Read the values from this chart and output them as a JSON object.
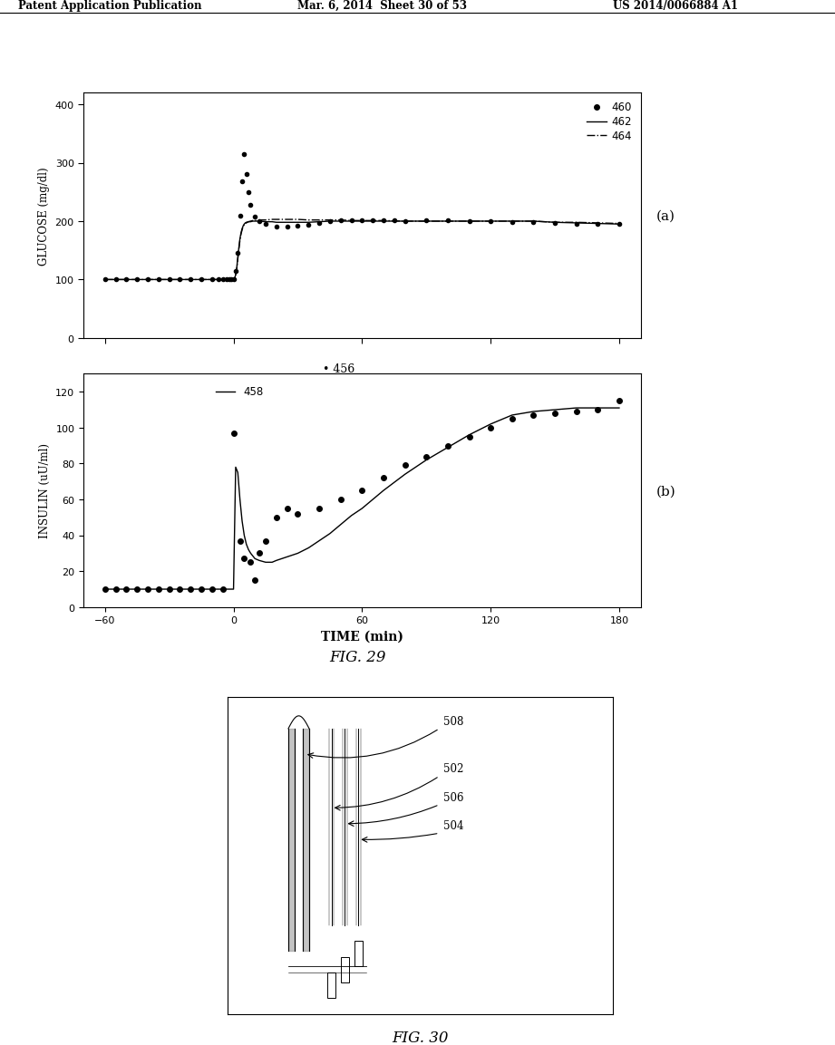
{
  "header_left": "Patent Application Publication",
  "header_mid": "Mar. 6, 2014  Sheet 30 of 53",
  "header_right": "US 2014/0066884 A1",
  "fig29_label": "FIG. 29",
  "fig30_label": "FIG. 30",
  "label_a": "(a)",
  "label_b": "(b)",
  "glucose_ylabel": "GLUCOSE (mg/dl)",
  "insulin_ylabel": "INSULIN (uU/ml)",
  "time_xlabel": "TIME (min)",
  "glucose_yticks": [
    0,
    100,
    200,
    300,
    400
  ],
  "glucose_ylim": [
    0,
    420
  ],
  "insulin_yticks": [
    0,
    20,
    40,
    60,
    80,
    100,
    120
  ],
  "insulin_ylim": [
    0,
    130
  ],
  "time_xticks": [
    -60,
    0,
    60,
    120,
    180
  ],
  "time_xlim": [
    -70,
    190
  ],
  "legend_460": "460",
  "legend_462": "462",
  "legend_464": "464",
  "legend_456": "456",
  "legend_458": "458",
  "glucose_dots_x": [
    -60,
    -55,
    -50,
    -45,
    -40,
    -35,
    -30,
    -25,
    -20,
    -15,
    -10,
    -7,
    -5,
    -3,
    -2,
    -1,
    0,
    1,
    2,
    3,
    4,
    5,
    6,
    7,
    8,
    10,
    12,
    15,
    20,
    25,
    30,
    35,
    40,
    45,
    50,
    55,
    60,
    65,
    70,
    75,
    80,
    90,
    100,
    110,
    120,
    130,
    140,
    150,
    160,
    170,
    180
  ],
  "glucose_dots_y": [
    100,
    100,
    100,
    100,
    100,
    100,
    100,
    100,
    101,
    100,
    100,
    100,
    100,
    100,
    100,
    100,
    100,
    115,
    145,
    210,
    268,
    315,
    280,
    250,
    228,
    208,
    200,
    195,
    190,
    191,
    192,
    194,
    197,
    200,
    201,
    201,
    202,
    202,
    201,
    201,
    200,
    201,
    202,
    200,
    200,
    199,
    198,
    197,
    196,
    196,
    195
  ],
  "glucose_line_x": [
    -60,
    -55,
    -50,
    -45,
    -40,
    -35,
    -30,
    -25,
    -20,
    -15,
    -10,
    -5,
    0,
    0.5,
    1,
    1.5,
    2,
    2.5,
    3,
    3.5,
    4,
    4.5,
    5,
    5.5,
    6,
    7,
    8,
    9,
    10,
    12,
    15,
    18,
    20,
    25,
    30,
    35,
    40,
    45,
    50,
    55,
    60,
    70,
    80,
    90,
    100,
    110,
    120,
    130,
    140,
    150,
    160,
    170,
    180
  ],
  "glucose_line_y": [
    100,
    100,
    100,
    100,
    100,
    100,
    100,
    100,
    100,
    100,
    100,
    100,
    100,
    102,
    108,
    120,
    138,
    155,
    170,
    180,
    187,
    192,
    195,
    197,
    198,
    199,
    199,
    200,
    200,
    200,
    199,
    199,
    198,
    198,
    198,
    198,
    199,
    200,
    200,
    200,
    200,
    200,
    200,
    200,
    200,
    200,
    200,
    200,
    200,
    198,
    197,
    196,
    195
  ],
  "glucose_dash_x": [
    -60,
    -55,
    -50,
    -45,
    -40,
    -35,
    -30,
    -25,
    -20,
    -15,
    -10,
    -5,
    0,
    0.5,
    1,
    1.5,
    2,
    2.5,
    3,
    3.5,
    4,
    4.5,
    5,
    5.5,
    6,
    7,
    8,
    9,
    10,
    12,
    15,
    18,
    20,
    25,
    30,
    35,
    40,
    45,
    50,
    55,
    60,
    70,
    80,
    90,
    100,
    110,
    120,
    130,
    140,
    150,
    160,
    170,
    180
  ],
  "glucose_dash_y": [
    100,
    100,
    100,
    100,
    100,
    100,
    100,
    100,
    100,
    100,
    100,
    100,
    100,
    102,
    108,
    118,
    135,
    152,
    167,
    178,
    185,
    191,
    194,
    196,
    197,
    199,
    200,
    201,
    201,
    202,
    202,
    203,
    203,
    203,
    203,
    202,
    202,
    202,
    202,
    201,
    201,
    201,
    200,
    200,
    200,
    200,
    200,
    200,
    200,
    198,
    198,
    197,
    196
  ],
  "insulin_dots_x": [
    -60,
    -55,
    -50,
    -45,
    -40,
    -35,
    -30,
    -25,
    -20,
    -15,
    -10,
    -5,
    0,
    3,
    5,
    8,
    10,
    12,
    15,
    20,
    25,
    30,
    40,
    50,
    60,
    70,
    80,
    90,
    100,
    110,
    120,
    130,
    140,
    150,
    160,
    170,
    180
  ],
  "insulin_dots_y": [
    10,
    10,
    10,
    10,
    10,
    10,
    10,
    10,
    10,
    10,
    10,
    10,
    97,
    37,
    27,
    25,
    15,
    30,
    37,
    50,
    55,
    52,
    55,
    60,
    65,
    72,
    79,
    84,
    90,
    95,
    100,
    105,
    107,
    108,
    109,
    110,
    115
  ],
  "insulin_line_x": [
    -60,
    -50,
    -40,
    -30,
    -20,
    -10,
    -5,
    0,
    1,
    2,
    3,
    4,
    5,
    6,
    7,
    8,
    10,
    12,
    15,
    18,
    20,
    25,
    30,
    35,
    40,
    45,
    50,
    55,
    60,
    70,
    80,
    90,
    100,
    110,
    120,
    130,
    140,
    150,
    160,
    170,
    180
  ],
  "insulin_line_y": [
    10,
    10,
    10,
    10,
    10,
    10,
    10,
    10,
    78,
    75,
    60,
    48,
    40,
    35,
    32,
    30,
    27,
    26,
    25,
    25,
    26,
    28,
    30,
    33,
    37,
    41,
    46,
    51,
    55,
    65,
    74,
    82,
    89,
    96,
    102,
    107,
    109,
    110,
    111,
    111,
    111
  ],
  "background_color": "#ffffff",
  "line_color": "#000000",
  "dot_color": "#333333"
}
